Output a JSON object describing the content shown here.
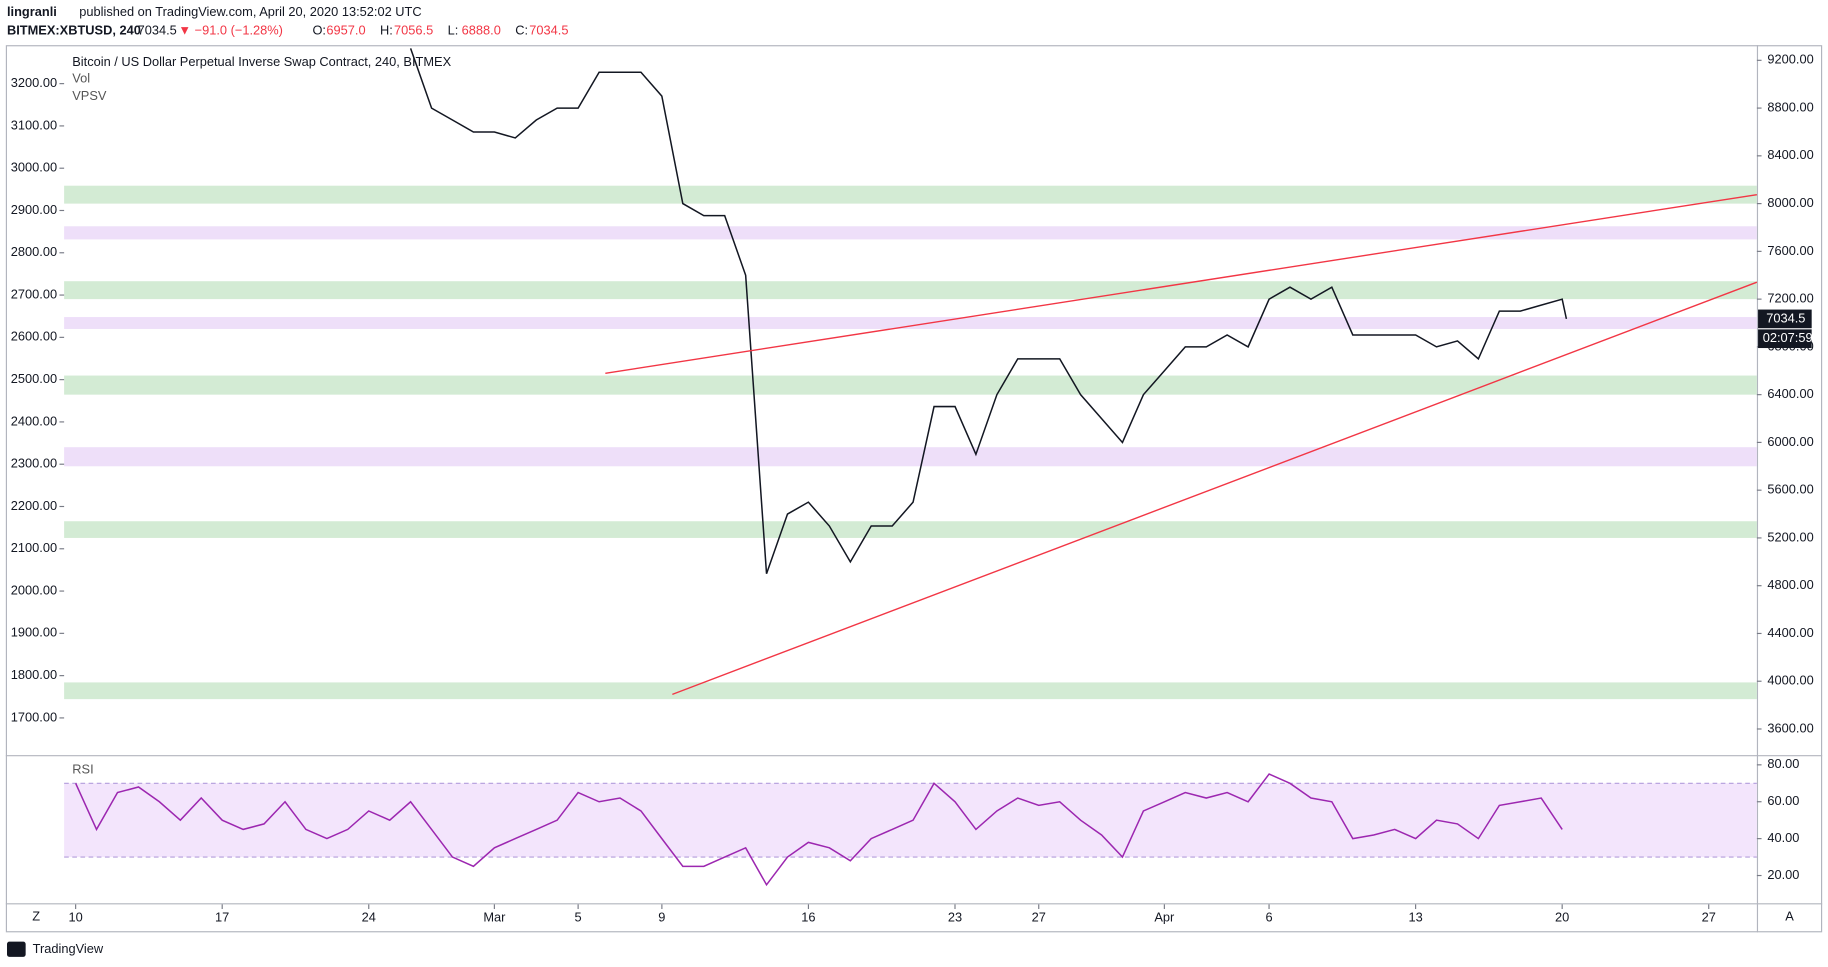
{
  "header": {
    "author": "lingranli",
    "published": "published on TradingView.com, April 20, 2020 13:52:02 UTC",
    "symbol": "BITMEX:XBTUSD, 240",
    "last": "7034.5",
    "change": "▼ −91.0 (−1.28%)",
    "ohlc": [
      {
        "key": "O:",
        "value": "6957.0"
      },
      {
        "key": "H:",
        "value": "7056.5"
      },
      {
        "key": "L:",
        "value": "6888.0"
      },
      {
        "key": "C:",
        "value": "7034.5"
      }
    ]
  },
  "chart_data": [
    {
      "type": "line",
      "title": "Bitcoin / US Dollar Perpetual Inverse Swap Contract, 240, BITMEX",
      "indicators": [
        "Vol",
        "VPSV"
      ],
      "x": [
        16,
        17,
        18,
        19,
        20,
        21,
        22,
        23,
        24,
        25,
        26,
        27,
        28,
        29,
        30,
        31,
        32,
        33,
        34,
        35,
        36,
        37,
        38,
        39,
        40,
        41,
        42,
        43,
        44,
        45,
        46,
        47,
        48,
        49,
        50,
        51,
        52,
        53,
        54,
        55,
        56,
        57,
        58,
        59,
        60,
        61,
        62,
        63,
        64,
        65,
        66,
        67,
        68,
        69,
        70,
        71,
        71.2
      ],
      "series": [
        {
          "color": "#131722",
          "values": [
            9300,
            8800,
            8700,
            8600,
            8600,
            8550,
            8700,
            8800,
            8800,
            9100,
            9100,
            9100,
            8900,
            8000,
            7900,
            7900,
            7400,
            4900,
            5400,
            5500,
            5300,
            5000,
            5300,
            5300,
            5500,
            6300,
            6300,
            5900,
            6400,
            6700,
            6700,
            6700,
            6400,
            6200,
            6000,
            6400,
            6600,
            6800,
            6800,
            6900,
            6800,
            7200,
            7300,
            7200,
            7300,
            6900,
            6900,
            6900,
            6900,
            6800,
            6850,
            6700,
            7100,
            7100,
            7150,
            7200,
            7034.5
          ]
        }
      ],
      "xlim": [
        -0.55,
        80.3
      ],
      "xticks": [
        {
          "value": 0,
          "label": "10"
        },
        {
          "value": 7,
          "label": "17"
        },
        {
          "value": 14,
          "label": "24"
        },
        {
          "value": 20,
          "label": "Mar"
        },
        {
          "value": 24,
          "label": "5"
        },
        {
          "value": 28,
          "label": "9"
        },
        {
          "value": 35,
          "label": "16"
        },
        {
          "value": 42,
          "label": "23"
        },
        {
          "value": 46,
          "label": "27"
        },
        {
          "value": 52,
          "label": "Apr"
        },
        {
          "value": 57,
          "label": "6"
        },
        {
          "value": 64,
          "label": "13"
        },
        {
          "value": 71,
          "label": "20"
        },
        {
          "value": 78,
          "label": "27"
        }
      ],
      "ylim": [
        3381,
        9327
      ],
      "yticks": [
        {
          "value": 3600,
          "label": "3600.00"
        },
        {
          "value": 4000,
          "label": "4000.00"
        },
        {
          "value": 4400,
          "label": "4400.00"
        },
        {
          "value": 4800,
          "label": "4800.00"
        },
        {
          "value": 5200,
          "label": "5200.00"
        },
        {
          "value": 5600,
          "label": "5600.00"
        },
        {
          "value": 6000,
          "label": "6000.00"
        },
        {
          "value": 6400,
          "label": "6400.00"
        },
        {
          "value": 6800,
          "label": "6800.00"
        },
        {
          "value": 7200,
          "label": "7200.00"
        },
        {
          "value": 7600,
          "label": "7600.00"
        },
        {
          "value": 8000,
          "label": "8000.00"
        },
        {
          "value": 8400,
          "label": "8400.00"
        },
        {
          "value": 8800,
          "label": "8800.00"
        },
        {
          "value": 9200,
          "label": "9200.00"
        }
      ],
      "y2lim": [
        1612,
        3291
      ],
      "y2ticks": [
        {
          "value": 1700,
          "label": "1700.00"
        },
        {
          "value": 1800,
          "label": "1800.00"
        },
        {
          "value": 1900,
          "label": "1900.00"
        },
        {
          "value": 2000,
          "label": "2000.00"
        },
        {
          "value": 2100,
          "label": "2100.00"
        },
        {
          "value": 2200,
          "label": "2200.00"
        },
        {
          "value": 2300,
          "label": "2300.00"
        },
        {
          "value": 2400,
          "label": "2400.00"
        },
        {
          "value": 2500,
          "label": "2500.00"
        },
        {
          "value": 2600,
          "label": "2600.00"
        },
        {
          "value": 2700,
          "label": "2700.00"
        },
        {
          "value": 2800,
          "label": "2800.00"
        },
        {
          "value": 2900,
          "label": "2900.00"
        },
        {
          "value": 3000,
          "label": "3000.00"
        },
        {
          "value": 3100,
          "label": "3100.00"
        },
        {
          "value": 3200,
          "label": "3200.00"
        }
      ],
      "zones": [
        {
          "range": [
            8000,
            8150
          ],
          "color": "#c8e6c9"
        },
        {
          "range": [
            7700,
            7810
          ],
          "color": "#ead7f7"
        },
        {
          "range": [
            7200,
            7350
          ],
          "color": "#c8e6c9"
        },
        {
          "range": [
            6950,
            7050
          ],
          "color": "#ead7f7"
        },
        {
          "range": [
            6400,
            6560
          ],
          "color": "#c8e6c9"
        },
        {
          "range": [
            5800,
            5960
          ],
          "color": "#ead7f7"
        },
        {
          "range": [
            5200,
            5340
          ],
          "color": "#c8e6c9"
        },
        {
          "range": [
            3850,
            3990
          ],
          "color": "#c8e6c9"
        }
      ],
      "trendlines": [
        {
          "color": "#f23645",
          "x": [
            25.3,
            80.3
          ],
          "y": [
            6579,
            8075
          ]
        },
        {
          "color": "#f23645",
          "x": [
            28.5,
            80.3
          ],
          "y": [
            3890,
            7342
          ]
        }
      ],
      "last_price": {
        "value": 7034.5,
        "label": "7034.5"
      },
      "countdown": "02:07:59"
    },
    {
      "type": "line",
      "x": [
        0,
        1,
        2,
        3,
        4,
        5,
        6,
        7,
        8,
        9,
        10,
        11,
        12,
        13,
        14,
        15,
        16,
        17,
        18,
        19,
        20,
        21,
        22,
        23,
        24,
        25,
        26,
        27,
        28,
        29,
        30,
        31,
        32,
        33,
        34,
        35,
        36,
        37,
        38,
        39,
        40,
        41,
        42,
        43,
        44,
        45,
        46,
        47,
        48,
        49,
        50,
        51,
        52,
        53,
        54,
        55,
        56,
        57,
        58,
        59,
        60,
        61,
        62,
        63,
        64,
        65,
        66,
        67,
        68,
        69,
        70,
        71
      ],
      "series": [
        {
          "name": "RSI",
          "color": "#9c27b0",
          "values": [
            70,
            45,
            65,
            68,
            60,
            50,
            62,
            50,
            45,
            48,
            60,
            45,
            40,
            45,
            55,
            50,
            60,
            45,
            30,
            25,
            35,
            40,
            45,
            50,
            65,
            60,
            62,
            55,
            40,
            25,
            25,
            30,
            35,
            15,
            30,
            38,
            35,
            28,
            40,
            45,
            50,
            70,
            60,
            45,
            55,
            62,
            58,
            60,
            50,
            42,
            30,
            55,
            60,
            65,
            62,
            65,
            60,
            75,
            70,
            62,
            60,
            40,
            42,
            45,
            40,
            50,
            48,
            40,
            58,
            60,
            62,
            45
          ]
        }
      ],
      "xlim": [
        -0.55,
        80.3
      ],
      "ylim": [
        5,
        84
      ],
      "yticks": [
        {
          "value": 20,
          "label": "20.00"
        },
        {
          "value": 40,
          "label": "40.00"
        },
        {
          "value": 60,
          "label": "60.00"
        },
        {
          "value": 80,
          "label": "80.00"
        }
      ],
      "band": [
        30,
        70
      ]
    }
  ],
  "footer": {
    "left": "Z",
    "right": "A",
    "logo": "TradingView"
  }
}
